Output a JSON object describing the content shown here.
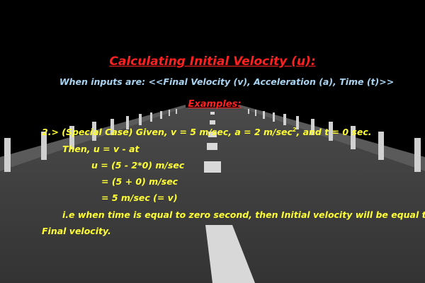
{
  "title": "Calculating Initial Velocity (u):",
  "subtitle": "When inputs are: <<Final Velocity (v), Acceleration (a), Time (t)>>",
  "examples_heading": "Examples:",
  "example": {
    "line1_pre": "2.> (Special Case) Given, v = 5 m/sec, a = 2 m/sec",
    "line1_sup": "2",
    "line1_post": ", and t = 0 sec.",
    "line2": "Then, u = v - at",
    "line3": "u = (5 - 2*0) m/sec",
    "line4": "= (5 + 0) m/sec",
    "line5": "= 5 m/sec (= v)",
    "line6": "i.e when time is equal to zero second, then Initial velocity will be equal to",
    "line7": "Final velocity."
  },
  "colors": {
    "background": "#000000",
    "road": "#3b3b3b",
    "title": "#ff2020",
    "subtitle": "#a8d4f2",
    "body_text": "#ffff33",
    "lane_marking": "#d8d8d8"
  }
}
